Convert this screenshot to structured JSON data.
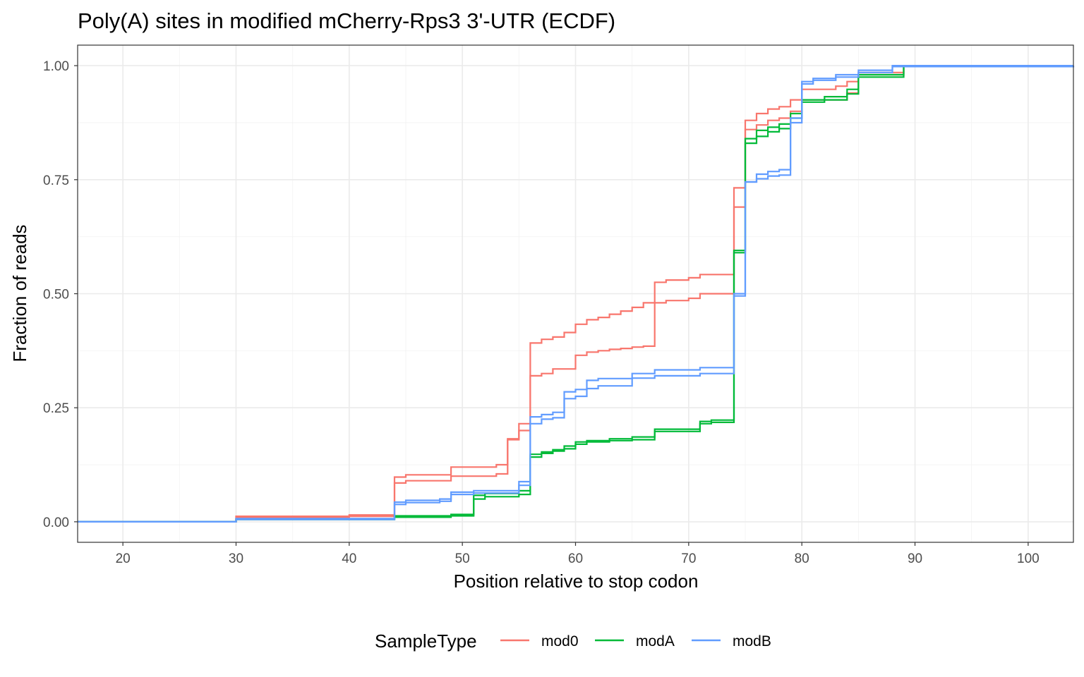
{
  "chart_data": {
    "type": "line",
    "step": true,
    "title": "Poly(A) sites in modified mCherry-Rps3 3'-UTR (ECDF)",
    "xlabel": "Position relative to stop codon",
    "ylabel": "Fraction of reads",
    "xlim": [
      16,
      104
    ],
    "ylim": [
      -0.045,
      1.045
    ],
    "x_ticks": [
      20,
      30,
      40,
      50,
      60,
      70,
      80,
      90,
      100
    ],
    "x_tick_labels": [
      "20",
      "30",
      "40",
      "50",
      "60",
      "70",
      "80",
      "90",
      "100"
    ],
    "y_ticks": [
      0,
      0.25,
      0.5,
      0.75,
      1.0
    ],
    "y_tick_labels": [
      "0.00",
      "0.25",
      "0.50",
      "0.75",
      "1.00"
    ],
    "grid": true,
    "legend": {
      "title": "SampleType",
      "position": "bottom"
    },
    "series": [
      {
        "name": "mod0",
        "color": "#F8766D",
        "x": [
          16,
          30,
          40,
          44,
          45,
          49,
          53,
          54,
          55,
          56,
          57,
          58,
          60,
          61,
          62,
          63,
          64,
          65,
          66,
          67,
          68,
          70,
          71,
          74,
          75,
          76,
          77,
          78,
          79,
          80,
          84,
          85,
          89,
          104
        ],
        "y": [
          0,
          0.01,
          0.012,
          0.085,
          0.09,
          0.1,
          0.105,
          0.18,
          0.2,
          0.32,
          0.325,
          0.335,
          0.365,
          0.372,
          0.375,
          0.378,
          0.38,
          0.383,
          0.385,
          0.48,
          0.485,
          0.49,
          0.5,
          0.69,
          0.86,
          0.87,
          0.88,
          0.885,
          0.9,
          0.925,
          0.94,
          0.98,
          1.0,
          1.0
        ]
      },
      {
        "name": "mod0",
        "color": "#F8766D",
        "x": [
          16,
          30,
          40,
          44,
          45,
          49,
          53,
          54,
          55,
          56,
          57,
          58,
          59,
          60,
          61,
          62,
          63,
          64,
          65,
          66,
          67,
          68,
          70,
          71,
          74,
          75,
          76,
          77,
          78,
          79,
          80,
          83,
          84,
          85,
          89,
          104
        ],
        "y": [
          0,
          0.012,
          0.015,
          0.098,
          0.103,
          0.12,
          0.125,
          0.182,
          0.215,
          0.392,
          0.4,
          0.405,
          0.415,
          0.433,
          0.443,
          0.448,
          0.455,
          0.462,
          0.47,
          0.48,
          0.525,
          0.53,
          0.535,
          0.542,
          0.732,
          0.88,
          0.895,
          0.905,
          0.91,
          0.925,
          0.948,
          0.955,
          0.965,
          0.985,
          1.0,
          1.0
        ]
      },
      {
        "name": "modA",
        "color": "#00BA38",
        "x": [
          16,
          30,
          44,
          49,
          51,
          52,
          55,
          56,
          57,
          58,
          59,
          60,
          61,
          63,
          65,
          67,
          71,
          72,
          74,
          75,
          76,
          77,
          78,
          79,
          80,
          82,
          84,
          85,
          89,
          104
        ],
        "y": [
          0,
          0.005,
          0.01,
          0.013,
          0.05,
          0.055,
          0.06,
          0.142,
          0.15,
          0.155,
          0.16,
          0.17,
          0.175,
          0.178,
          0.18,
          0.198,
          0.215,
          0.218,
          0.59,
          0.83,
          0.845,
          0.855,
          0.862,
          0.885,
          0.92,
          0.925,
          0.938,
          0.975,
          1.0,
          1.0
        ]
      },
      {
        "name": "modA",
        "color": "#00BA38",
        "x": [
          16,
          30,
          44,
          49,
          51,
          52,
          55,
          56,
          57,
          58,
          59,
          60,
          61,
          63,
          65,
          67,
          71,
          72,
          74,
          75,
          76,
          77,
          78,
          79,
          80,
          82,
          84,
          85,
          89,
          104
        ],
        "y": [
          0,
          0.006,
          0.013,
          0.016,
          0.058,
          0.062,
          0.068,
          0.148,
          0.153,
          0.158,
          0.166,
          0.175,
          0.178,
          0.182,
          0.186,
          0.203,
          0.22,
          0.223,
          0.595,
          0.84,
          0.858,
          0.865,
          0.872,
          0.895,
          0.925,
          0.932,
          0.948,
          0.98,
          1.0,
          1.0
        ]
      },
      {
        "name": "modB",
        "color": "#619CFF",
        "x": [
          16,
          30,
          44,
          45,
          48,
          49,
          51,
          55,
          56,
          57,
          58,
          59,
          60,
          61,
          62,
          65,
          67,
          71,
          74,
          75,
          76,
          77,
          78,
          79,
          80,
          81,
          83,
          85,
          88,
          104
        ],
        "y": [
          0,
          0.005,
          0.038,
          0.042,
          0.045,
          0.06,
          0.063,
          0.08,
          0.215,
          0.225,
          0.228,
          0.27,
          0.275,
          0.292,
          0.298,
          0.315,
          0.32,
          0.325,
          0.495,
          0.745,
          0.752,
          0.758,
          0.76,
          0.875,
          0.96,
          0.968,
          0.975,
          0.985,
          0.998,
          1.0
        ]
      },
      {
        "name": "modB",
        "color": "#619CFF",
        "x": [
          16,
          30,
          44,
          45,
          48,
          49,
          51,
          55,
          56,
          57,
          58,
          59,
          60,
          61,
          62,
          65,
          67,
          71,
          74,
          75,
          76,
          77,
          78,
          79,
          80,
          81,
          83,
          85,
          88,
          104
        ],
        "y": [
          0,
          0.007,
          0.043,
          0.047,
          0.05,
          0.065,
          0.068,
          0.088,
          0.23,
          0.235,
          0.24,
          0.285,
          0.29,
          0.31,
          0.314,
          0.325,
          0.333,
          0.338,
          0.5,
          0.745,
          0.762,
          0.768,
          0.772,
          0.885,
          0.965,
          0.972,
          0.98,
          0.99,
          1.0,
          1.0
        ]
      }
    ],
    "legend_entries": [
      {
        "label": "mod0",
        "color": "#F8766D"
      },
      {
        "label": "modA",
        "color": "#00BA38"
      },
      {
        "label": "modB",
        "color": "#619CFF"
      }
    ]
  }
}
